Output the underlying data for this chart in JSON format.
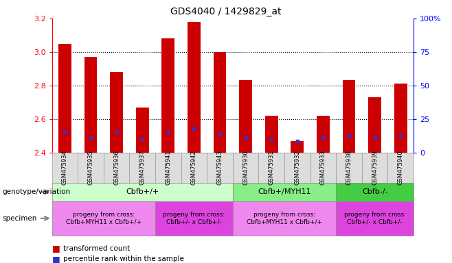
{
  "title": "GDS4040 / 1429829_at",
  "samples": [
    "GSM475934",
    "GSM475935",
    "GSM475936",
    "GSM475937",
    "GSM475941",
    "GSM475942",
    "GSM475943",
    "GSM475930",
    "GSM475931",
    "GSM475932",
    "GSM475933",
    "GSM475938",
    "GSM475939",
    "GSM475940"
  ],
  "red_values": [
    3.05,
    2.97,
    2.88,
    2.67,
    3.08,
    3.18,
    3.0,
    2.83,
    2.62,
    2.47,
    2.62,
    2.83,
    2.73,
    2.81
  ],
  "blue_values": [
    2.52,
    2.49,
    2.52,
    2.48,
    2.52,
    2.54,
    2.51,
    2.49,
    2.48,
    2.47,
    2.49,
    2.5,
    2.49,
    2.5
  ],
  "ylim_left": [
    2.4,
    3.2
  ],
  "ylim_right": [
    0,
    100
  ],
  "yticks_left": [
    2.4,
    2.6,
    2.8,
    3.0,
    3.2
  ],
  "yticks_right": [
    0,
    25,
    50,
    75,
    100
  ],
  "ytick_labels_right": [
    "0",
    "25",
    "50",
    "75",
    "100%"
  ],
  "bar_color": "#cc0000",
  "blue_color": "#3333cc",
  "baseline": 2.4,
  "genotype_groups": [
    {
      "label": "Cbfb+/+",
      "start": 0,
      "end": 7,
      "color": "#ccffcc"
    },
    {
      "label": "Cbfb+/MYH11",
      "start": 7,
      "end": 11,
      "color": "#88ee88"
    },
    {
      "label": "Cbfb-/-",
      "start": 11,
      "end": 14,
      "color": "#44cc44"
    }
  ],
  "specimen_groups": [
    {
      "label": "progeny from cross:\nCbfb+MYH11 x Cbfb+/+",
      "start": 0,
      "end": 4,
      "color": "#ee88ee"
    },
    {
      "label": "progeny from cross:\nCbfb+/- x Cbfb+/-",
      "start": 4,
      "end": 7,
      "color": "#dd44dd"
    },
    {
      "label": "progeny from cross:\nCbfb+MYH11 x Cbfb+/+",
      "start": 7,
      "end": 11,
      "color": "#ee88ee"
    },
    {
      "label": "progeny from cross:\nCbfb+/- x Cbfb+/-",
      "start": 11,
      "end": 14,
      "color": "#dd44dd"
    }
  ],
  "legend_red": "transformed count",
  "legend_blue": "percentile rank within the sample",
  "genotype_label": "genotype/variation",
  "specimen_label": "specimen",
  "bar_width": 0.5
}
